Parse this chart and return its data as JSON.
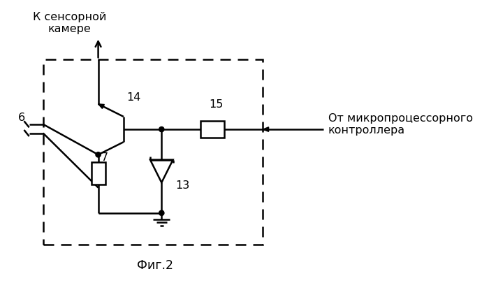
{
  "title": "Фиг.2",
  "label_top": "К сенсорной\nкамере",
  "label_right": "От микропроцессорного\nконтроллера",
  "label_6": "6",
  "label_7": "7",
  "label_13": "13",
  "label_14": "14",
  "label_15": "15",
  "line_color": "#000000",
  "bg_color": "#ffffff",
  "lw": 1.8
}
